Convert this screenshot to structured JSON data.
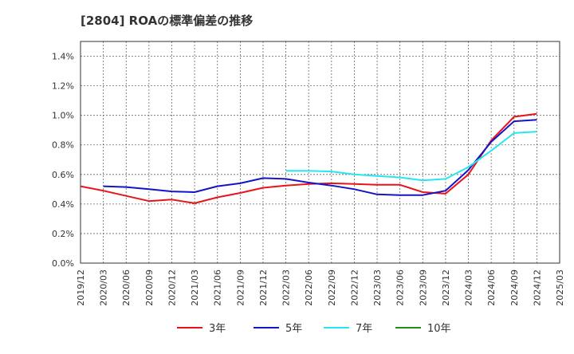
{
  "chart_data": {
    "type": "line",
    "title": "[2804]  ROAの標準偏差の推移",
    "x": [
      "2019/12",
      "2020/03",
      "2020/06",
      "2020/09",
      "2020/12",
      "2021/03",
      "2021/06",
      "2021/09",
      "2021/12",
      "2022/03",
      "2022/06",
      "2022/09",
      "2022/12",
      "2023/03",
      "2023/06",
      "2023/09",
      "2023/12",
      "2024/03",
      "2024/06",
      "2024/09",
      "2024/12",
      "2025/03"
    ],
    "yticks": [
      "0.0%",
      "0.2%",
      "0.4%",
      "0.6%",
      "0.8%",
      "1.0%",
      "1.2%",
      "1.4%"
    ],
    "ylim": [
      0,
      1.5
    ],
    "grid": true,
    "legend_position": "bottom",
    "series": [
      {
        "name": "3年",
        "color": "#e8141b",
        "values": [
          0.52,
          0.49,
          0.455,
          0.42,
          0.43,
          0.405,
          0.445,
          0.475,
          0.51,
          0.525,
          0.535,
          0.54,
          0.535,
          0.53,
          0.53,
          0.48,
          0.47,
          0.6,
          0.83,
          0.99,
          1.01,
          null
        ]
      },
      {
        "name": "5年",
        "color": "#1414c8",
        "values": [
          null,
          0.52,
          0.515,
          0.5,
          0.485,
          0.48,
          0.52,
          0.54,
          0.575,
          0.57,
          0.545,
          0.525,
          0.5,
          0.465,
          0.46,
          0.46,
          0.49,
          0.63,
          0.82,
          0.96,
          0.97,
          null
        ]
      },
      {
        "name": "7年",
        "color": "#27e6f0",
        "values": [
          null,
          null,
          null,
          null,
          null,
          null,
          null,
          null,
          null,
          0.625,
          0.625,
          0.62,
          0.6,
          0.59,
          0.58,
          0.56,
          0.57,
          0.65,
          0.76,
          0.88,
          0.89,
          null
        ]
      },
      {
        "name": "10年",
        "color": "#218a21",
        "values": [
          null,
          null,
          null,
          null,
          null,
          null,
          null,
          null,
          null,
          null,
          null,
          null,
          null,
          null,
          null,
          null,
          null,
          null,
          null,
          null,
          null,
          null
        ]
      }
    ]
  }
}
